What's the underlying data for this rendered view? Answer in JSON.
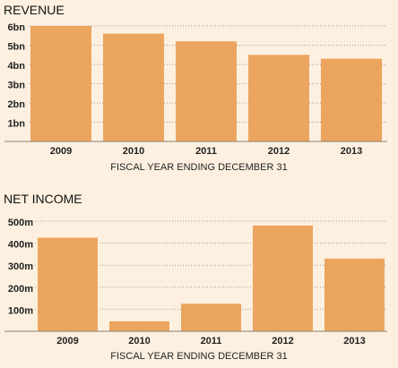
{
  "chart_data": [
    {
      "type": "bar",
      "title": "REVENUE",
      "xlabel": "FISCAL YEAR ENDING DECEMBER 31",
      "ylabel": "",
      "categories": [
        "2009",
        "2010",
        "2011",
        "2012",
        "2013"
      ],
      "values": [
        6.0,
        5.6,
        5.2,
        4.5,
        4.3
      ],
      "ylim": [
        0,
        6
      ],
      "yticks": [
        1,
        2,
        3,
        4,
        5,
        6
      ],
      "ytick_labels": [
        "1bn",
        "2bn",
        "3bn",
        "4bn",
        "5bn",
        "6bn"
      ],
      "grid": true,
      "color": "#eca55f"
    },
    {
      "type": "bar",
      "title": "NET INCOME",
      "xlabel": "FISCAL YEAR ENDING DECEMBER 31",
      "ylabel": "",
      "categories": [
        "2009",
        "2010",
        "2011",
        "2012",
        "2013"
      ],
      "values": [
        425,
        45,
        125,
        480,
        330
      ],
      "ylim": [
        0,
        500
      ],
      "yticks": [
        100,
        200,
        300,
        400,
        500
      ],
      "ytick_labels": [
        "100m",
        "200m",
        "300m",
        "400m",
        "500m"
      ],
      "grid": true,
      "color": "#eca55f"
    }
  ]
}
